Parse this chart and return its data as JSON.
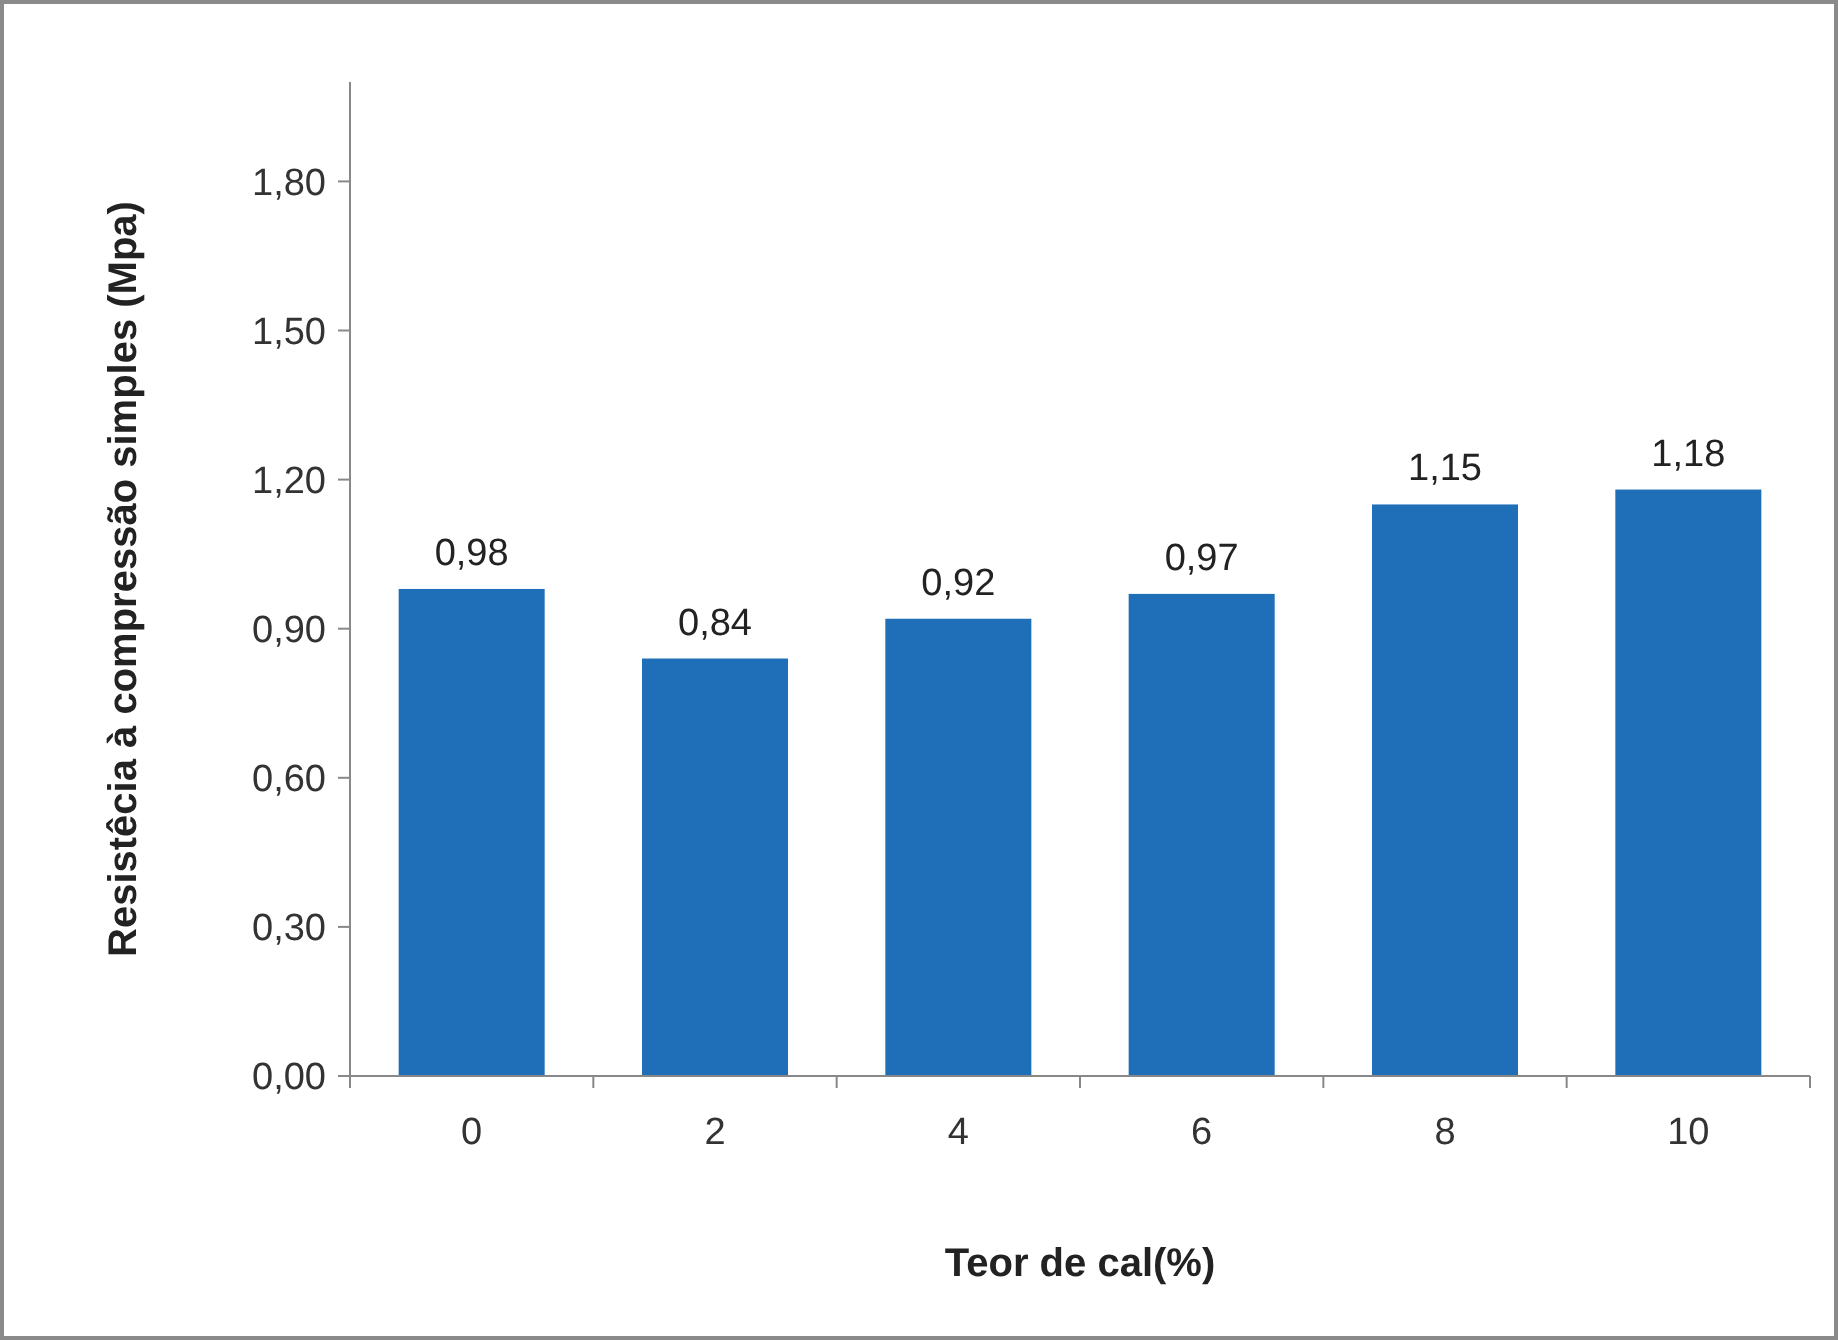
{
  "chart_data": {
    "type": "bar",
    "xlabel": "Teor de cal(%)",
    "ylabel": "Resistêcia à compressão simples (Mpa)",
    "categories": [
      "0",
      "2",
      "4",
      "6",
      "8",
      "10"
    ],
    "values": [
      0.98,
      0.84,
      0.92,
      0.97,
      1.15,
      1.18
    ],
    "value_labels": [
      "0,98",
      "0,84",
      "0,92",
      "0,97",
      "1,15",
      "1,18"
    ],
    "color": "#1f6eb8",
    "ylim": [
      0,
      2.0
    ],
    "yticks": [
      {
        "value": 0,
        "label": "0,00"
      },
      {
        "value": 0.3,
        "label": "0,30"
      },
      {
        "value": 0.6,
        "label": "0,60"
      },
      {
        "value": 0.9,
        "label": "0,90"
      },
      {
        "value": 1.2,
        "label": "1,20"
      },
      {
        "value": 1.5,
        "label": "1,50"
      },
      {
        "value": 1.8,
        "label": "1,80"
      }
    ],
    "grid": false
  }
}
